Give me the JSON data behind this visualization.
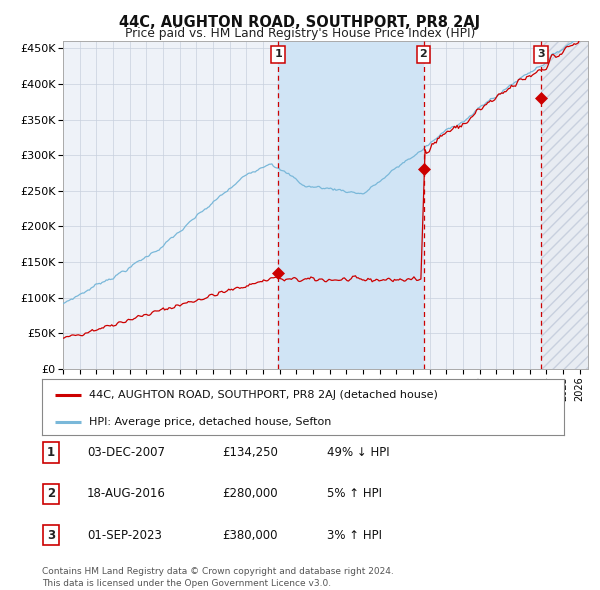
{
  "title": "44C, AUGHTON ROAD, SOUTHPORT, PR8 2AJ",
  "subtitle": "Price paid vs. HM Land Registry's House Price Index (HPI)",
  "xlim_start": 1995.0,
  "xlim_end": 2026.5,
  "ylim_min": 0,
  "ylim_max": 460000,
  "yticks": [
    0,
    50000,
    100000,
    150000,
    200000,
    250000,
    300000,
    350000,
    400000,
    450000
  ],
  "ytick_labels": [
    "£0",
    "£50K",
    "£100K",
    "£150K",
    "£200K",
    "£250K",
    "£300K",
    "£350K",
    "£400K",
    "£450K"
  ],
  "background_color": "#ffffff",
  "plot_bg_color": "#eef2f8",
  "grid_color": "#c8d0de",
  "hpi_line_color": "#7ab8d9",
  "price_line_color": "#cc0000",
  "dashed_line_color": "#cc0000",
  "sale1_x": 2007.92,
  "sale1_y": 134250,
  "sale2_x": 2016.63,
  "sale2_y": 280000,
  "sale3_x": 2023.67,
  "sale3_y": 380000,
  "legend_label_price": "44C, AUGHTON ROAD, SOUTHPORT, PR8 2AJ (detached house)",
  "legend_label_hpi": "HPI: Average price, detached house, Sefton",
  "table_rows": [
    [
      "1",
      "03-DEC-2007",
      "£134,250",
      "49% ↓ HPI"
    ],
    [
      "2",
      "18-AUG-2016",
      "£280,000",
      "5% ↑ HPI"
    ],
    [
      "3",
      "01-SEP-2023",
      "£380,000",
      "3% ↑ HPI"
    ]
  ],
  "footer": "Contains HM Land Registry data © Crown copyright and database right 2024.\nThis data is licensed under the Open Government Licence v3.0.",
  "span_color": "#d0e4f5",
  "hatch_color": "#c8d0de"
}
